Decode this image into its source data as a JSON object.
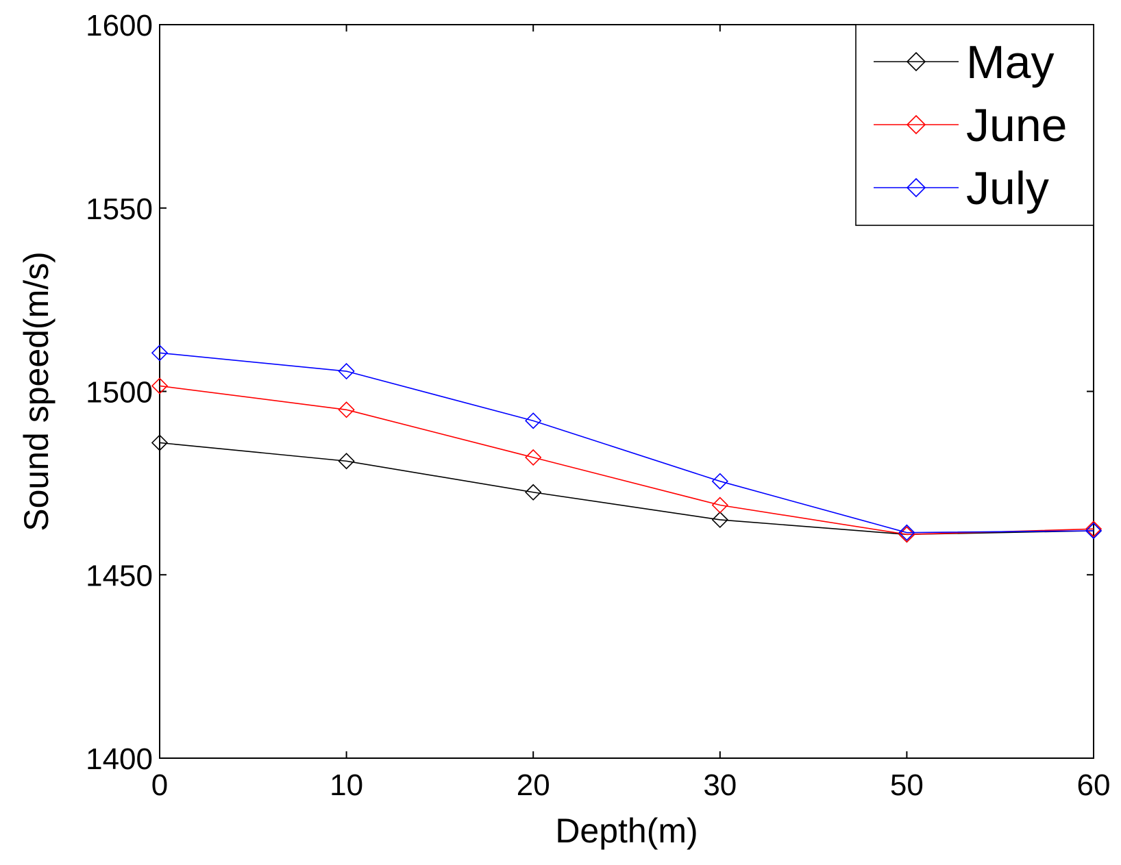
{
  "chart_data": {
    "type": "line",
    "title": "",
    "xlabel": "Depth(m)",
    "ylabel": "Sound speed(m/s)",
    "categories": [
      "0",
      "10",
      "20",
      "30",
      "50",
      "60"
    ],
    "ylim": [
      1400,
      1600
    ],
    "yticks": [
      "1400",
      "1450",
      "1500",
      "1550",
      "1600"
    ],
    "grid": false,
    "legend_position": "top-right",
    "marker": "diamond",
    "series": [
      {
        "name": "May",
        "color": "#000000",
        "values": [
          1486,
          1481,
          1472.5,
          1465,
          1461,
          1462
        ]
      },
      {
        "name": "June",
        "color": "#ff0000",
        "values": [
          1501.5,
          1495,
          1482,
          1469,
          1461,
          1462.5
        ]
      },
      {
        "name": "July",
        "color": "#0000ff",
        "values": [
          1510.5,
          1505.5,
          1492,
          1475.5,
          1461.5,
          1462
        ]
      }
    ]
  }
}
